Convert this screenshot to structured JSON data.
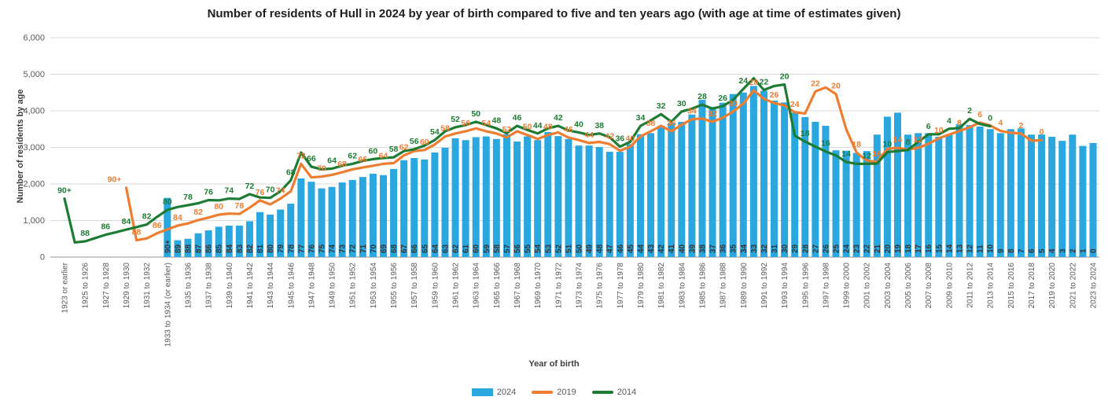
{
  "title": "Number of residents of Hull in 2024 by year of birth compared to five and ten years ago (with age at time of estimates given)",
  "y_axis": {
    "title": "Number of residents by age",
    "tick_labels": [
      "0",
      "1,000",
      "2,000",
      "3,000",
      "4,000",
      "5,000",
      "6,000"
    ],
    "tick_values": [
      0,
      1000,
      2000,
      3000,
      4000,
      5000,
      6000
    ]
  },
  "x_axis": {
    "title": "Year of birth"
  },
  "legend": {
    "items": [
      {
        "label": "2024",
        "type": "bar",
        "color": "#2AA7DF"
      },
      {
        "label": "2019",
        "type": "line",
        "color": "#ED7D31"
      },
      {
        "label": "2014",
        "type": "line",
        "color": "#1E7B34"
      }
    ]
  },
  "chart_data": {
    "type": "bar",
    "subtype": "combo bar + 2 lines",
    "ylim": [
      0,
      6000
    ],
    "grid": "horizontal",
    "legend_position": "bottom",
    "n_positions": 101,
    "note": "positions i=0..100 are consecutive one-year birth cohorts; category tick labels are shown at even positions only; bar data labels and line data labels give age at time of each estimate",
    "categories": [
      "1923 or earlier",
      "1925 to 1926",
      "1927 to 1928",
      "1929 to 1930",
      "1931 to 1932",
      "1933 to 1934 (or earlier)",
      "1935 to 1936",
      "1937 to 1938",
      "1939 to 1940",
      "1941 to 1942",
      "1943 to 1944",
      "1945 to 1946",
      "1947 to 1948",
      "1949 to 1950",
      "1951 to 1952",
      "1953 to 1954",
      "1955 to 1956",
      "1957 to 1958",
      "1959 to 1960",
      "1961 to 1962",
      "1963 to 1964",
      "1965 to 1966",
      "1967 to 1968",
      "1969 to 1970",
      "1971 to 1972",
      "1973 to 1974",
      "1975 to 1976",
      "1977 to 1978",
      "1979 to 1980",
      "1981 to 1982",
      "1983 to 1984",
      "1985 to 1986",
      "1987 to 1988",
      "1989 to 1990",
      "1991 to 1992",
      "1993 to 1994",
      "1995 to 1996",
      "1997 to 1998",
      "1999 to 2000",
      "2001 to 2002",
      "2003 to 2004",
      "2005 to 2006",
      "2007 to 2008",
      "2009 to 2010",
      "2011 to 2012",
      "2013 to 2014",
      "2015 to 2016",
      "2017 to 2018",
      "2019 to 2020",
      "2021 to 2022",
      "2023 to 2024"
    ],
    "series": [
      {
        "name": "2024",
        "type": "bar",
        "color": "#2AA7DF",
        "start_index": 10,
        "values": [
          1620,
          460,
          500,
          650,
          730,
          830,
          860,
          860,
          980,
          1230,
          1160,
          1300,
          1460,
          2150,
          2060,
          1880,
          1920,
          2040,
          2110,
          2190,
          2280,
          2240,
          2410,
          2650,
          2710,
          2670,
          2860,
          2990,
          3250,
          3200,
          3280,
          3300,
          3230,
          3360,
          3160,
          3300,
          3200,
          3420,
          3310,
          3230,
          3050,
          3050,
          3010,
          2880,
          2880,
          3090,
          3360,
          3390,
          3590,
          3660,
          3700,
          3900,
          4300,
          4110,
          4220,
          4460,
          4500,
          4680,
          4550,
          4280,
          4230,
          3950,
          3830,
          3700,
          3590,
          2920,
          2910,
          2850,
          2900,
          3350,
          3840,
          3950,
          3350,
          3390,
          3390,
          3290,
          3350,
          3630,
          3610,
          3570,
          3500,
          3390,
          3500,
          3520,
          3350,
          3350,
          3290,
          3180,
          3350,
          3040,
          3120
        ],
        "point_labels": [
          "90+",
          "89",
          "88",
          "87",
          "86",
          "85",
          "84",
          "83",
          "82",
          "81",
          "80",
          "79",
          "78",
          "77",
          "76",
          "75",
          "74",
          "73",
          "72",
          "71",
          "70",
          "69",
          "68",
          "67",
          "66",
          "65",
          "64",
          "63",
          "62",
          "61",
          "60",
          "59",
          "58",
          "57",
          "56",
          "55",
          "54",
          "53",
          "52",
          "51",
          "50",
          "49",
          "48",
          "47",
          "46",
          "45",
          "44",
          "43",
          "42",
          "41",
          "40",
          "39",
          "38",
          "37",
          "36",
          "35",
          "34",
          "33",
          "32",
          "31",
          "30",
          "29",
          "28",
          "27",
          "26",
          "25",
          "24",
          "23",
          "22",
          "21",
          "20",
          "19",
          "18",
          "17",
          "16",
          "15",
          "14",
          "13",
          "12",
          "11",
          "10",
          "9",
          "8",
          "7",
          "6",
          "5",
          "4",
          "3",
          "2",
          "1",
          "0"
        ]
      },
      {
        "name": "2019",
        "type": "line",
        "color": "#ED7D31",
        "start_index": 6,
        "values": [
          1900,
          460,
          510,
          650,
          760,
          860,
          920,
          1010,
          1080,
          1160,
          1190,
          1180,
          1350,
          1550,
          1440,
          1600,
          1800,
          2550,
          2180,
          2200,
          2250,
          2320,
          2400,
          2450,
          2500,
          2550,
          2570,
          2780,
          2900,
          2930,
          3080,
          3300,
          3380,
          3440,
          3520,
          3440,
          3380,
          3270,
          3440,
          3340,
          3230,
          3340,
          3410,
          3270,
          3200,
          3120,
          3150,
          3090,
          2910,
          3020,
          3300,
          3440,
          3590,
          3440,
          3620,
          3770,
          3790,
          3700,
          3810,
          3980,
          4200,
          4560,
          4330,
          4210,
          4150,
          3960,
          3930,
          4530,
          4640,
          4460,
          3500,
          2860,
          2640,
          2600,
          2960,
          2990,
          2940,
          2990,
          3100,
          3250,
          3350,
          3450,
          3550,
          3680,
          3600,
          3450,
          3400,
          3380,
          3180,
          3200
        ],
        "age_labels": [
          {
            "i": 6,
            "t": "90+"
          },
          {
            "i": 7,
            "t": "88"
          },
          {
            "i": 9,
            "t": "86"
          },
          {
            "i": 11,
            "t": "84"
          },
          {
            "i": 13,
            "t": "82"
          },
          {
            "i": 15,
            "t": "80"
          },
          {
            "i": 17,
            "t": "78"
          },
          {
            "i": 19,
            "t": "76"
          },
          {
            "i": 21,
            "t": "74"
          },
          {
            "i": 23,
            "t": "72"
          },
          {
            "i": 25,
            "t": "70"
          },
          {
            "i": 27,
            "t": "68"
          },
          {
            "i": 29,
            "t": "66"
          },
          {
            "i": 31,
            "t": "64"
          },
          {
            "i": 33,
            "t": "62"
          },
          {
            "i": 35,
            "t": "60"
          },
          {
            "i": 37,
            "t": "58"
          },
          {
            "i": 39,
            "t": "56"
          },
          {
            "i": 41,
            "t": "54"
          },
          {
            "i": 43,
            "t": "52"
          },
          {
            "i": 45,
            "t": "50"
          },
          {
            "i": 47,
            "t": "48"
          },
          {
            "i": 49,
            "t": "46"
          },
          {
            "i": 51,
            "t": "44"
          },
          {
            "i": 53,
            "t": "42"
          },
          {
            "i": 55,
            "t": "40"
          },
          {
            "i": 57,
            "t": "38"
          },
          {
            "i": 59,
            "t": "36"
          },
          {
            "i": 61,
            "t": "34"
          },
          {
            "i": 63,
            "t": "32"
          },
          {
            "i": 65,
            "t": "30"
          },
          {
            "i": 67,
            "t": "28"
          },
          {
            "i": 69,
            "t": "26"
          },
          {
            "i": 71,
            "t": "24"
          },
          {
            "i": 73,
            "t": "22"
          },
          {
            "i": 75,
            "t": "20"
          },
          {
            "i": 77,
            "t": "18"
          },
          {
            "i": 79,
            "t": "16"
          },
          {
            "i": 81,
            "t": "14"
          },
          {
            "i": 83,
            "t": "12"
          },
          {
            "i": 85,
            "t": "10"
          },
          {
            "i": 87,
            "t": "8"
          },
          {
            "i": 89,
            "t": "6"
          },
          {
            "i": 91,
            "t": "4"
          },
          {
            "i": 93,
            "t": "2"
          },
          {
            "i": 95,
            "t": "0"
          }
        ]
      },
      {
        "name": "2014",
        "type": "line",
        "color": "#1E7B34",
        "start_index": 0,
        "values": [
          1600,
          400,
          430,
          520,
          610,
          680,
          750,
          820,
          890,
          1100,
          1290,
          1370,
          1420,
          1470,
          1560,
          1550,
          1600,
          1590,
          1720,
          1630,
          1620,
          1800,
          2100,
          2860,
          2470,
          2400,
          2420,
          2500,
          2550,
          2630,
          2680,
          2710,
          2730,
          2900,
          2950,
          3050,
          3200,
          3440,
          3550,
          3610,
          3700,
          3610,
          3520,
          3390,
          3590,
          3480,
          3380,
          3520,
          3590,
          3460,
          3410,
          3340,
          3380,
          3280,
          3020,
          3150,
          3590,
          3740,
          3910,
          3700,
          3980,
          4060,
          4170,
          4060,
          4130,
          4300,
          4600,
          4890,
          4570,
          4680,
          4720,
          3320,
          3160,
          3020,
          2890,
          2780,
          2600,
          2550,
          2550,
          2560,
          2870,
          2900,
          2930,
          3150,
          3360,
          3360,
          3510,
          3530,
          3780,
          3640,
          3580
        ],
        "age_labels": [
          {
            "i": 0,
            "t": "90+"
          },
          {
            "i": 2,
            "t": "88"
          },
          {
            "i": 4,
            "t": "86"
          },
          {
            "i": 6,
            "t": "84"
          },
          {
            "i": 8,
            "t": "82"
          },
          {
            "i": 10,
            "t": "80"
          },
          {
            "i": 12,
            "t": "78"
          },
          {
            "i": 14,
            "t": "76"
          },
          {
            "i": 16,
            "t": "74"
          },
          {
            "i": 18,
            "t": "72"
          },
          {
            "i": 20,
            "t": "70"
          },
          {
            "i": 22,
            "t": "68"
          },
          {
            "i": 24,
            "t": "66"
          },
          {
            "i": 26,
            "t": "64"
          },
          {
            "i": 28,
            "t": "62"
          },
          {
            "i": 30,
            "t": "60"
          },
          {
            "i": 32,
            "t": "58"
          },
          {
            "i": 34,
            "t": "56"
          },
          {
            "i": 36,
            "t": "54"
          },
          {
            "i": 38,
            "t": "52"
          },
          {
            "i": 40,
            "t": "50"
          },
          {
            "i": 42,
            "t": "48"
          },
          {
            "i": 44,
            "t": "46"
          },
          {
            "i": 46,
            "t": "44"
          },
          {
            "i": 48,
            "t": "42"
          },
          {
            "i": 50,
            "t": "40"
          },
          {
            "i": 52,
            "t": "38"
          },
          {
            "i": 54,
            "t": "36"
          },
          {
            "i": 56,
            "t": "34"
          },
          {
            "i": 58,
            "t": "32"
          },
          {
            "i": 60,
            "t": "30"
          },
          {
            "i": 62,
            "t": "28"
          },
          {
            "i": 64,
            "t": "26"
          },
          {
            "i": 66,
            "t": "24"
          },
          {
            "i": 68,
            "t": "22"
          },
          {
            "i": 70,
            "t": "20"
          },
          {
            "i": 72,
            "t": "18"
          },
          {
            "i": 74,
            "t": "16"
          },
          {
            "i": 76,
            "t": "14"
          },
          {
            "i": 78,
            "t": "12"
          },
          {
            "i": 80,
            "t": "10"
          },
          {
            "i": 82,
            "t": "8"
          },
          {
            "i": 84,
            "t": "6"
          },
          {
            "i": 86,
            "t": "4"
          },
          {
            "i": 88,
            "t": "2"
          },
          {
            "i": 90,
            "t": "0"
          }
        ]
      }
    ]
  }
}
